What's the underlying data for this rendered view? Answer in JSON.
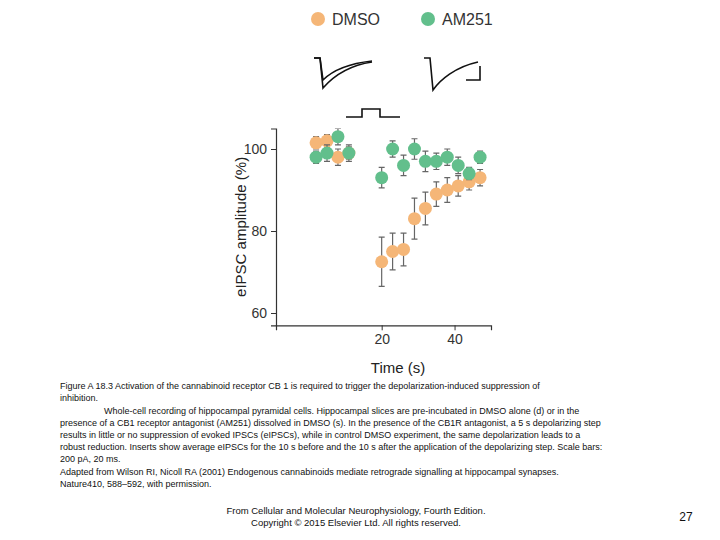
{
  "chart_data": {
    "type": "scatter",
    "x_label": "Time (s)",
    "y_label": "eIPSC amplitude (%)",
    "x": [
      2,
      5,
      8,
      11,
      20,
      23,
      26,
      29,
      32,
      35,
      38,
      41,
      44,
      47
    ],
    "xlim": [
      -9,
      50
    ],
    "xticks": [
      20,
      40
    ],
    "ylim": [
      57,
      105
    ],
    "yticks": [
      60,
      80,
      100
    ],
    "legend": "top",
    "series": [
      {
        "name": "DMSO",
        "color": "#f5b677",
        "marker": "circle",
        "values": [
          101.5,
          102,
          98,
          99,
          72.5,
          75,
          75.5,
          83,
          85.5,
          89,
          90,
          91,
          92,
          93
        ],
        "errors": [
          1.5,
          1.5,
          2,
          1.5,
          6,
          4.5,
          4,
          5,
          4,
          3,
          3,
          2.5,
          2,
          2
        ]
      },
      {
        "name": "AM251",
        "color": "#62bf8c",
        "marker": "circle",
        "values": [
          98,
          99,
          103,
          99,
          93,
          100,
          96,
          100,
          97,
          97,
          98,
          96,
          94,
          98
        ],
        "errors": [
          1.5,
          2,
          2,
          2,
          2.5,
          2,
          2.5,
          2.5,
          2.5,
          2,
          2,
          2,
          1.5,
          1.5
        ]
      }
    ]
  },
  "caption": {
    "lines": [
      "Figure A 18.3 Activation of the cannabinoid receptor CB 1 is required to trigger the depolarization-induced suppression of",
      "inhibition.",
      "Whole-cell recording of hippocampal pyramidal cells. Hippocampal slices are pre-incubated in DMSO alone (d) or in the",
      "presence of a CB1 receptor antagonist (AM251) dissolved in DMSO (s). In the presence of the CB1R antagonist, a 5 s depolarizing step",
      "results in little or no suppression of evoked IPSCs (eIPSCs), while in control DMSO experiment, the same depolarization leads to a",
      "robust reduction. Inserts show average eIPSCs for the 10 s before and the 10 s after the application of the depolarizing step. Scale bars:",
      "200 pA, 20 ms.",
      "Adapted from Wilson RI, Nicoll RA (2001) Endogenous cannabinoids mediate retrograde signalling at hippocampal synapses.",
      "Nature410, 588–592, with permission."
    ]
  },
  "footer": {
    "lines": [
      "From Cellular and Molecular Neurophysiology, Fourth Edition.",
      "Copyright © 2015 Elsevier Ltd. All rights reserved."
    ]
  },
  "page_number": "27"
}
